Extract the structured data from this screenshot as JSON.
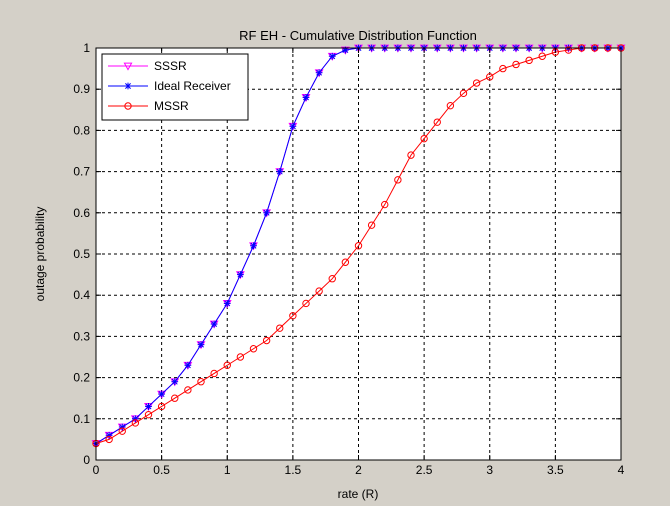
{
  "chart_data": {
    "type": "line",
    "title": "RF EH - Cumulative Distribution Function",
    "xlabel": "rate (R)",
    "ylabel": "outage probability",
    "xlim": [
      0,
      4
    ],
    "ylim": [
      0,
      1
    ],
    "xticks": [
      0,
      0.5,
      1,
      1.5,
      2,
      2.5,
      3,
      3.5,
      4
    ],
    "xtick_labels": [
      "0",
      "0.5",
      "1",
      "1.5",
      "2",
      "2.5",
      "3",
      "3.5",
      "4"
    ],
    "yticks": [
      0,
      0.1,
      0.2,
      0.3,
      0.4,
      0.5,
      0.6,
      0.7,
      0.8,
      0.9,
      1
    ],
    "ytick_labels": [
      "0",
      "0.1",
      "0.2",
      "0.3",
      "0.4",
      "0.5",
      "0.6",
      "0.7",
      "0.8",
      "0.9",
      "1"
    ],
    "grid": true,
    "legend_position": "top-left",
    "x": [
      0,
      0.1,
      0.2,
      0.3,
      0.4,
      0.5,
      0.6,
      0.7,
      0.8,
      0.9,
      1.0,
      1.1,
      1.2,
      1.3,
      1.4,
      1.5,
      1.6,
      1.7,
      1.8,
      1.9,
      2.0,
      2.1,
      2.2,
      2.3,
      2.4,
      2.5,
      2.6,
      2.7,
      2.8,
      2.9,
      3.0,
      3.1,
      3.2,
      3.3,
      3.4,
      3.5,
      3.6,
      3.7,
      3.8,
      3.9,
      4.0
    ],
    "series": [
      {
        "name": "SSSR",
        "color": "#ff00ff",
        "marker": "triangle-down",
        "values": [
          0.04,
          0.06,
          0.08,
          0.1,
          0.13,
          0.16,
          0.19,
          0.23,
          0.28,
          0.33,
          0.38,
          0.45,
          0.52,
          0.6,
          0.7,
          0.81,
          0.88,
          0.94,
          0.98,
          0.995,
          1.0,
          1.0,
          1.0,
          1.0,
          1.0,
          1.0,
          1.0,
          1.0,
          1.0,
          1.0,
          1.0,
          1.0,
          1.0,
          1.0,
          1.0,
          1.0,
          1.0,
          1.0,
          1.0,
          1.0,
          1.0
        ]
      },
      {
        "name": "Ideal Receiver",
        "color": "#0000ff",
        "marker": "star",
        "values": [
          0.04,
          0.06,
          0.08,
          0.1,
          0.13,
          0.16,
          0.19,
          0.23,
          0.28,
          0.33,
          0.38,
          0.45,
          0.52,
          0.6,
          0.7,
          0.81,
          0.88,
          0.94,
          0.98,
          0.995,
          1.0,
          1.0,
          1.0,
          1.0,
          1.0,
          1.0,
          1.0,
          1.0,
          1.0,
          1.0,
          1.0,
          1.0,
          1.0,
          1.0,
          1.0,
          1.0,
          1.0,
          1.0,
          1.0,
          1.0,
          1.0
        ]
      },
      {
        "name": "MSSR",
        "color": "#ff0000",
        "marker": "circle",
        "values": [
          0.04,
          0.05,
          0.07,
          0.09,
          0.11,
          0.13,
          0.15,
          0.17,
          0.19,
          0.21,
          0.23,
          0.25,
          0.27,
          0.29,
          0.32,
          0.35,
          0.38,
          0.41,
          0.44,
          0.48,
          0.52,
          0.57,
          0.62,
          0.68,
          0.74,
          0.78,
          0.82,
          0.86,
          0.89,
          0.915,
          0.93,
          0.95,
          0.96,
          0.97,
          0.98,
          0.99,
          0.995,
          1.0,
          1.0,
          1.0,
          1.0
        ]
      }
    ]
  }
}
